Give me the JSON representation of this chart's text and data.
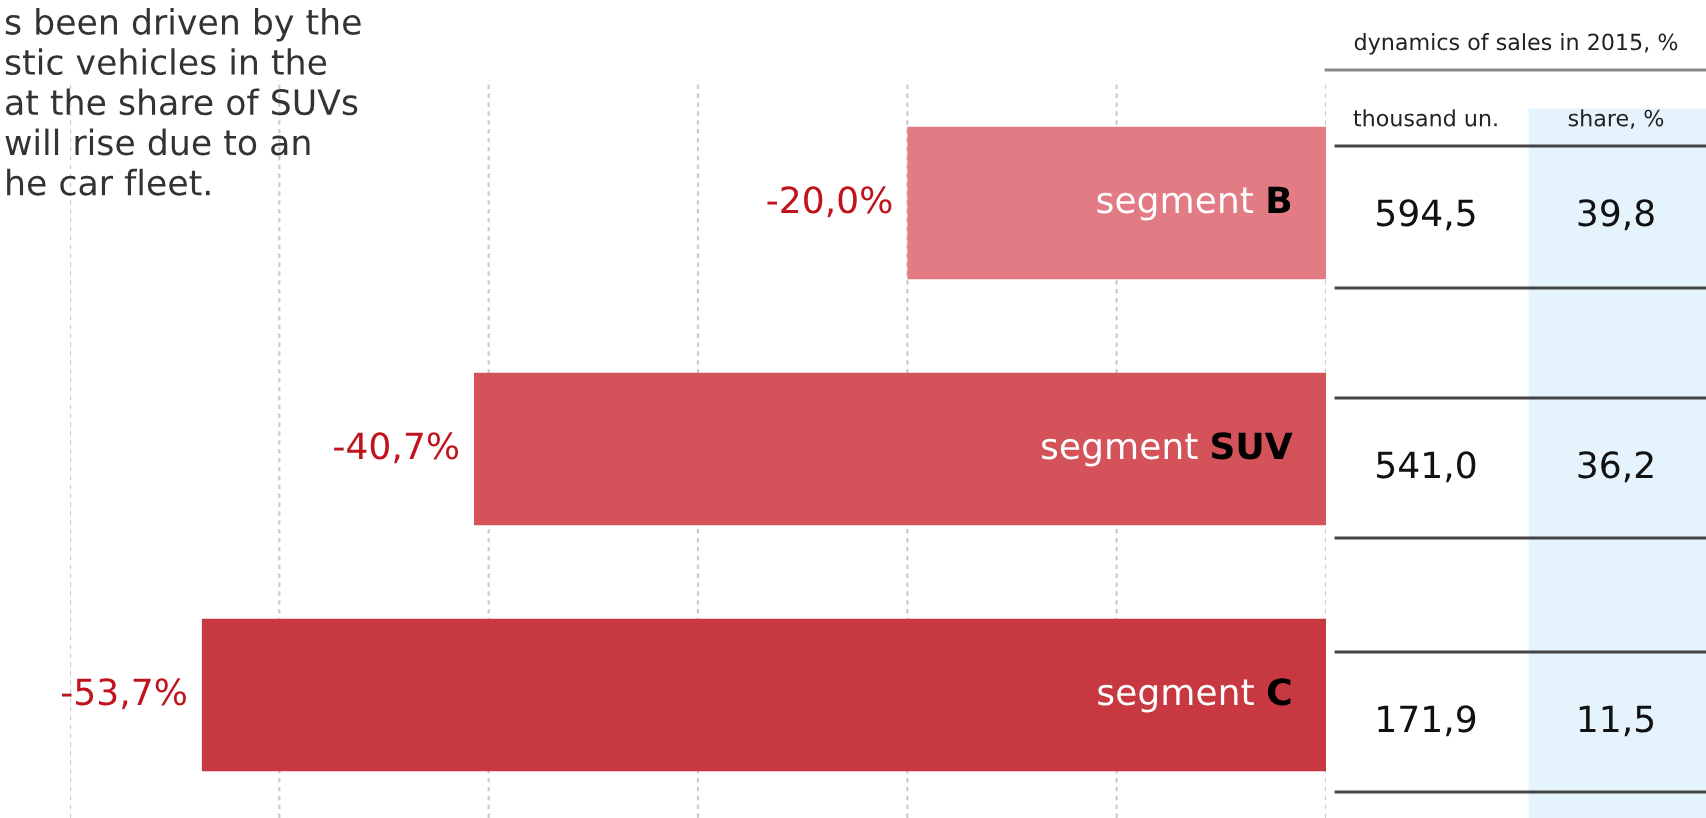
{
  "chart_data": {
    "type": "bar",
    "orientation": "horizontal",
    "categories": [
      "segment B",
      "segment SUV",
      "segment C"
    ],
    "values": [
      -20.0,
      -40.7,
      -53.7
    ],
    "colors": [
      "#e27b84",
      "#d4525a",
      "#c73840"
    ],
    "value_labels": [
      "-20,0%",
      "-40,7%",
      "-53,7%"
    ],
    "xlim": [
      -60,
      0
    ],
    "xticks": [
      {
        "value": -60,
        "label": null
      },
      {
        "value": -50,
        "label": null
      },
      {
        "value": -40,
        "label": null
      },
      {
        "value": -30,
        "label": null
      },
      {
        "value": -20,
        "label": null
      },
      {
        "value": -10,
        "label": null
      },
      {
        "value": 0,
        "label": null
      }
    ],
    "grid": "x",
    "annotations": [
      "s been driven by the\nstic vehicles in the\nat the share of SUVs\nwill rise due to an\nhe car fleet.",
      "dynamics of sales in 2015, %",
      "thousand un.",
      "share, %",
      "594,5",
      "39,8",
      "541,0",
      "36,2",
      "171,9",
      "11,5"
    ]
  }
}
